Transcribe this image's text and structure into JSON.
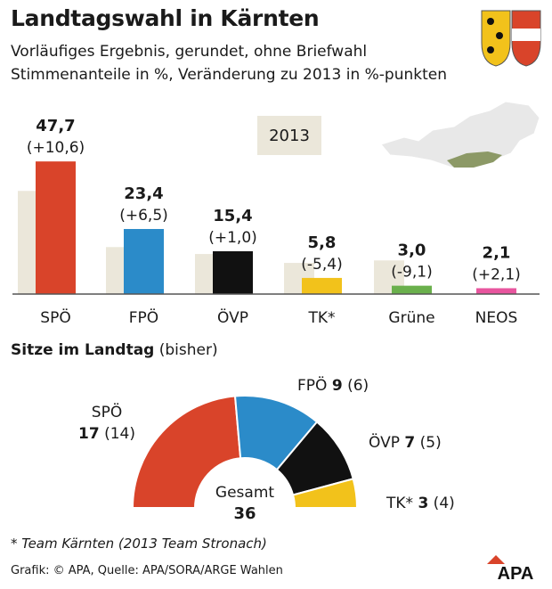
{
  "title": "Landtagswahl in Kärnten",
  "subtitle1": "Vorläufiges Ergebnis, gerundet, ohne Briefwahl",
  "subtitle2": "Stimmenanteile in %, Veränderung zu 2013 in %-punkten",
  "legend_year": "2013",
  "seats_title_bold": "Sitze im Landtag",
  "seats_title_rest": " (bisher)",
  "footnote": "* Team Kärnten (2013 Team Stronach)",
  "credit": "Grafik: © APA, Quelle: APA/SORA/ARGE Wahlen",
  "logo_text": "APA",
  "colors": {
    "SPÖ": "#d9442a",
    "FPÖ": "#2b8bc9",
    "ÖVP": "#111111",
    "TK*": "#f2c21b",
    "Grüne": "#6ab04c",
    "NEOS": "#e8559e",
    "prev": "#ebe7da",
    "map_land": "#e8e8e8",
    "map_highlight": "#8c9966"
  },
  "chart_data": [
    {
      "type": "bar",
      "title": "Stimmenanteile in %",
      "categories": [
        "SPÖ",
        "FPÖ",
        "ÖVP",
        "TK*",
        "Grüne",
        "NEOS"
      ],
      "series": [
        {
          "name": "",
          "values": [
            47.7,
            23.4,
            15.4,
            5.8,
            3.0,
            2.1
          ]
        },
        {
          "name": "2013",
          "values": [
            37.1,
            16.9,
            14.4,
            11.2,
            12.1,
            0
          ]
        }
      ],
      "value_labels": [
        "47,7",
        "23,4",
        "15,4",
        "5,8",
        "3,0",
        "2,1"
      ],
      "change_labels": [
        "(+10,6)",
        "(+6,5)",
        "(+1,0)",
        "(-5,4)",
        "(-9,1)",
        "(+2,1)"
      ],
      "ylim": [
        0,
        50
      ]
    },
    {
      "type": "pie",
      "title": "Sitze im Landtag (bisher)",
      "categories": [
        "SPÖ",
        "FPÖ",
        "ÖVP",
        "TK*"
      ],
      "values": [
        17,
        9,
        7,
        3
      ],
      "previous": [
        14,
        6,
        5,
        4
      ],
      "total_label": "Gesamt",
      "total": "36"
    }
  ]
}
